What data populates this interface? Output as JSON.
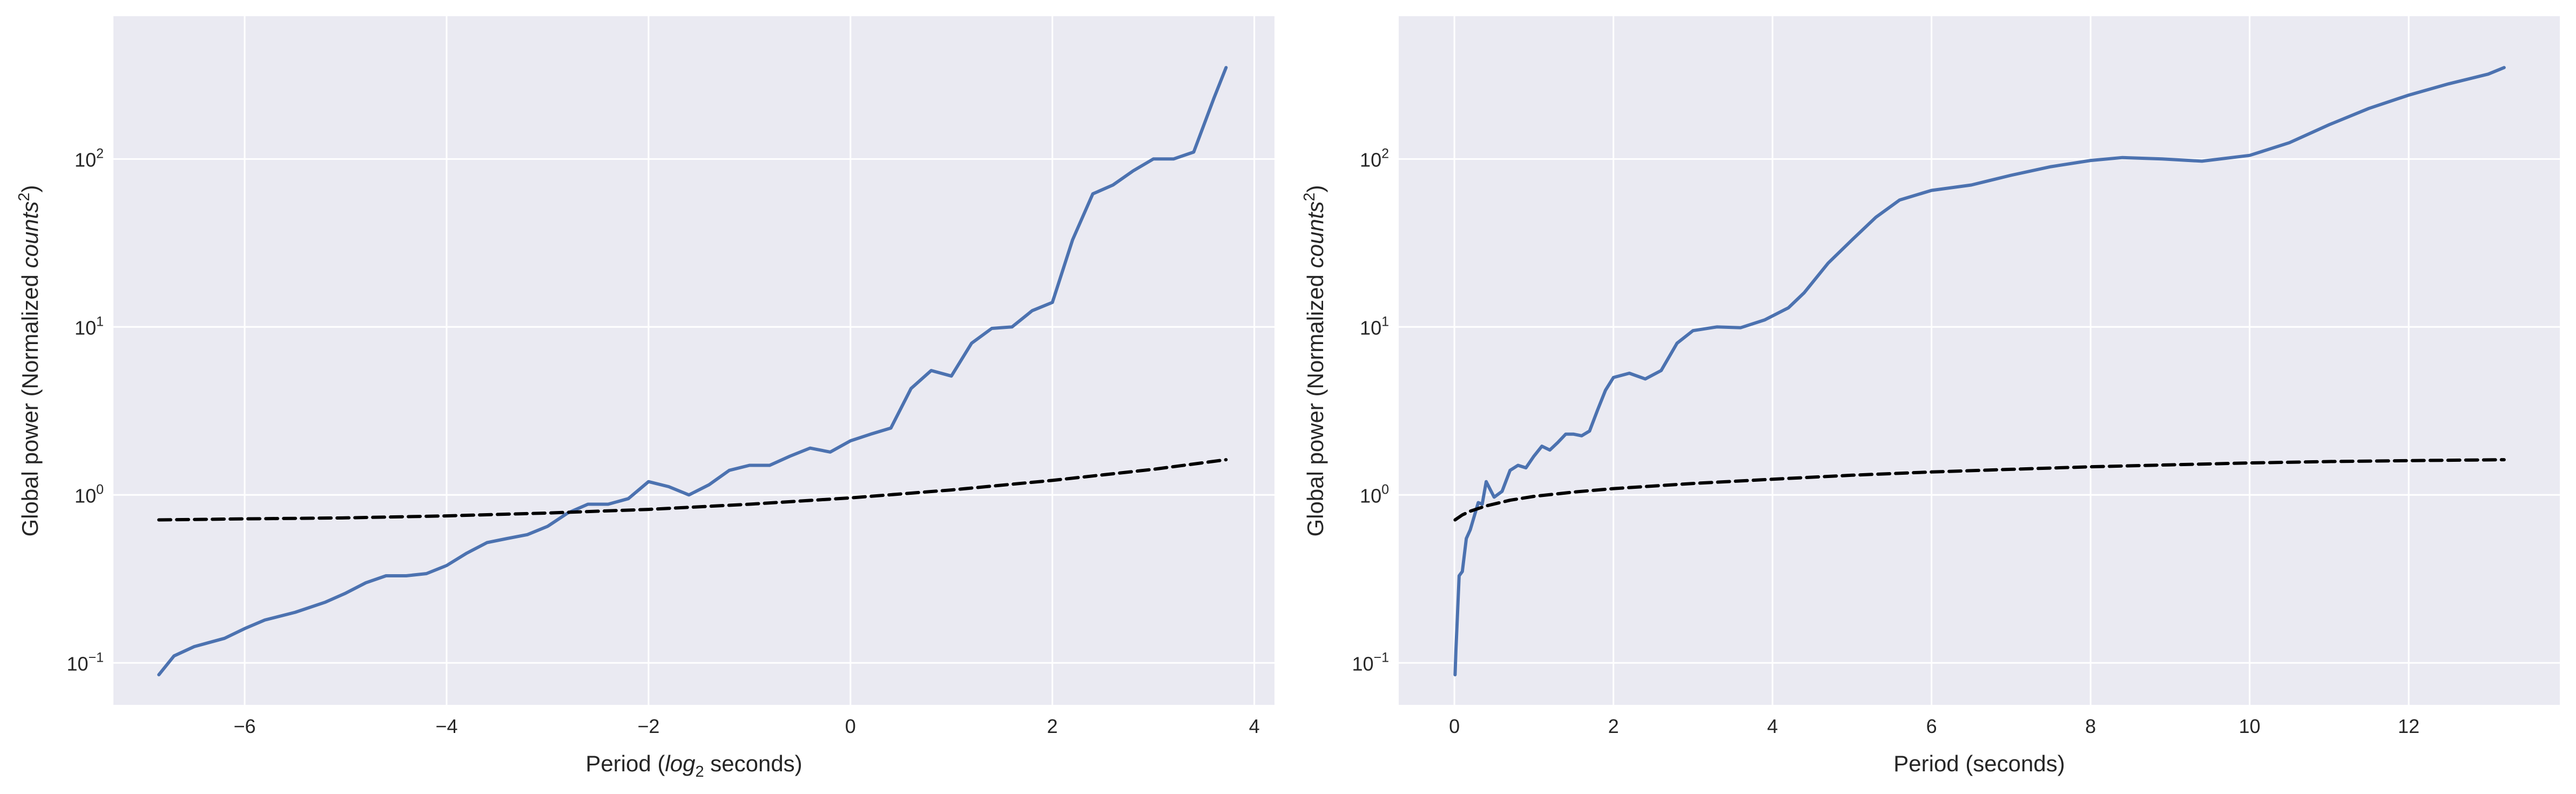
{
  "chart_data": [
    {
      "type": "line",
      "xlabel_parts": [
        "Period (",
        "log",
        "2",
        " seconds)"
      ],
      "ylabel_parts": [
        "Global power (Normalized ",
        "counts",
        "2",
        ")"
      ],
      "xlim": [
        -7.3,
        4.2
      ],
      "ylim_log10": [
        -1.25,
        2.85
      ],
      "yscale": "log",
      "grid": true,
      "xticks": [
        -6,
        -4,
        -2,
        0,
        2,
        4
      ],
      "xtick_labels": [
        "−6",
        "−4",
        "−2",
        "0",
        "2",
        "4"
      ],
      "yticks_exp": [
        "−1",
        "0",
        "1",
        "2"
      ],
      "yticks_base": "10",
      "yticks_values": [
        0.1,
        1,
        10,
        100
      ],
      "colors": {
        "series": "#4c72b0",
        "threshold": "#000000",
        "background": "#eaeaf2",
        "grid": "#ffffff"
      },
      "series": [
        {
          "style": "solid",
          "x": [
            -6.85,
            -6.7,
            -6.5,
            -6.2,
            -6.0,
            -5.8,
            -5.5,
            -5.2,
            -5.0,
            -4.8,
            -4.6,
            -4.4,
            -4.2,
            -4.0,
            -3.8,
            -3.6,
            -3.4,
            -3.2,
            -3.0,
            -2.8,
            -2.6,
            -2.4,
            -2.2,
            -2.0,
            -1.8,
            -1.6,
            -1.4,
            -1.2,
            -1.0,
            -0.8,
            -0.6,
            -0.4,
            -0.2,
            0.0,
            0.2,
            0.4,
            0.6,
            0.8,
            1.0,
            1.2,
            1.4,
            1.6,
            1.8,
            2.0,
            2.2,
            2.4,
            2.6,
            2.8,
            3.0,
            3.2,
            3.4,
            3.6,
            3.72
          ],
          "y": [
            0.085,
            0.11,
            0.125,
            0.14,
            0.16,
            0.18,
            0.2,
            0.23,
            0.26,
            0.3,
            0.33,
            0.33,
            0.34,
            0.38,
            0.45,
            0.52,
            0.55,
            0.58,
            0.65,
            0.78,
            0.88,
            0.88,
            0.95,
            1.2,
            1.12,
            1.0,
            1.15,
            1.4,
            1.5,
            1.5,
            1.7,
            1.9,
            1.8,
            2.1,
            2.3,
            2.5,
            4.3,
            5.5,
            5.1,
            8.0,
            9.8,
            10.0,
            12.5,
            14.0,
            33.0,
            62.0,
            70.0,
            85.0,
            100.0,
            100.0,
            110.0,
            230.0,
            350.0
          ]
        },
        {
          "style": "dashed",
          "x": [
            -6.85,
            -6.0,
            -5.0,
            -4.0,
            -3.0,
            -2.0,
            -1.0,
            0.0,
            1.0,
            2.0,
            3.0,
            3.72
          ],
          "y": [
            0.71,
            0.72,
            0.73,
            0.75,
            0.78,
            0.82,
            0.88,
            0.96,
            1.07,
            1.22,
            1.42,
            1.62
          ]
        }
      ]
    },
    {
      "type": "line",
      "xlabel_parts": [
        "Period (seconds)"
      ],
      "ylabel_parts": [
        "Global power (Normalized ",
        "counts",
        "2",
        ")"
      ],
      "xlim": [
        -0.7,
        13.9
      ],
      "ylim_log10": [
        -1.25,
        2.85
      ],
      "yscale": "log",
      "grid": true,
      "xticks": [
        0,
        2,
        4,
        6,
        8,
        10,
        12
      ],
      "xtick_labels": [
        "0",
        "2",
        "4",
        "6",
        "8",
        "10",
        "12"
      ],
      "yticks_exp": [
        "−1",
        "0",
        "1",
        "2"
      ],
      "yticks_base": "10",
      "yticks_values": [
        0.1,
        1,
        10,
        100
      ],
      "colors": {
        "series": "#4c72b0",
        "threshold": "#000000",
        "background": "#eaeaf2",
        "grid": "#ffffff"
      },
      "series": [
        {
          "style": "solid",
          "x": [
            0.009,
            0.02,
            0.04,
            0.06,
            0.1,
            0.15,
            0.2,
            0.3,
            0.35,
            0.4,
            0.5,
            0.6,
            0.7,
            0.8,
            0.9,
            1.0,
            1.1,
            1.2,
            1.3,
            1.4,
            1.5,
            1.6,
            1.7,
            1.8,
            1.9,
            2.0,
            2.2,
            2.4,
            2.6,
            2.8,
            3.0,
            3.3,
            3.6,
            3.9,
            4.2,
            4.4,
            4.7,
            5.0,
            5.3,
            5.6,
            6.0,
            6.5,
            7.0,
            7.5,
            8.0,
            8.4,
            8.9,
            9.4,
            10.0,
            10.5,
            11.0,
            11.5,
            12.0,
            12.5,
            13.0,
            13.2
          ],
          "y": [
            0.085,
            0.12,
            0.2,
            0.33,
            0.35,
            0.55,
            0.62,
            0.9,
            0.88,
            1.2,
            0.97,
            1.05,
            1.4,
            1.5,
            1.45,
            1.7,
            1.95,
            1.85,
            2.05,
            2.3,
            2.3,
            2.25,
            2.4,
            3.2,
            4.2,
            5.0,
            5.3,
            4.9,
            5.5,
            8.0,
            9.5,
            10.0,
            9.9,
            11.0,
            13.0,
            16.0,
            24.0,
            33.0,
            45.0,
            57.0,
            65.0,
            70.0,
            80.0,
            90.0,
            98.0,
            102.0,
            100.0,
            97.0,
            105.0,
            125.0,
            160.0,
            200.0,
            240.0,
            280.0,
            320.0,
            350.0
          ]
        },
        {
          "style": "dashed",
          "x": [
            0.009,
            0.1,
            0.2,
            0.4,
            0.7,
            1.0,
            1.5,
            2.0,
            3.0,
            4.0,
            5.0,
            6.0,
            7.0,
            8.0,
            9.0,
            10.0,
            11.0,
            12.0,
            13.2
          ],
          "y": [
            0.71,
            0.76,
            0.8,
            0.86,
            0.93,
            0.98,
            1.04,
            1.09,
            1.17,
            1.24,
            1.31,
            1.37,
            1.42,
            1.47,
            1.51,
            1.55,
            1.58,
            1.6,
            1.62
          ]
        }
      ]
    }
  ]
}
